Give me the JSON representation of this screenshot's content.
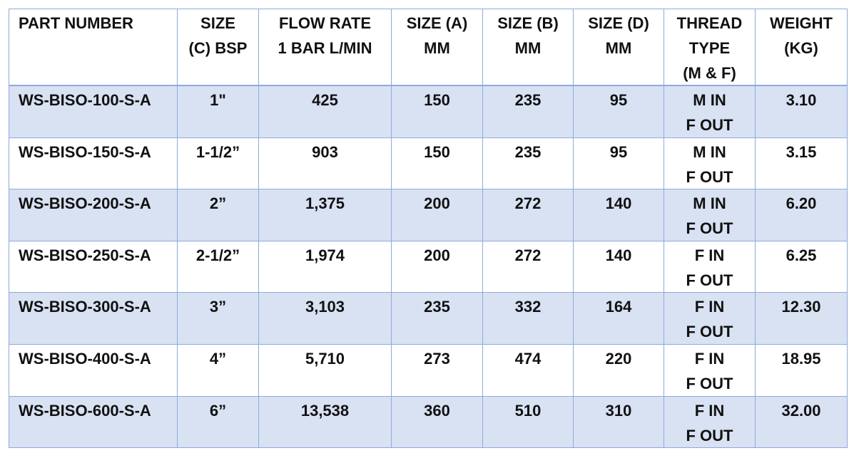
{
  "table": {
    "header": [
      [
        "PART NUMBER"
      ],
      [
        "SIZE",
        "(C) BSP"
      ],
      [
        "FLOW RATE",
        "1 BAR L/MIN"
      ],
      [
        "SIZE (A)",
        "MM"
      ],
      [
        "SIZE (B)",
        "MM"
      ],
      [
        "SIZE (D)",
        "MM"
      ],
      [
        "THREAD",
        "TYPE",
        "(M & F)"
      ],
      [
        "WEIGHT",
        "(KG)"
      ]
    ],
    "rows": [
      [
        [
          "WS-BISO-100-S-A"
        ],
        [
          "1\""
        ],
        [
          "425"
        ],
        [
          "150"
        ],
        [
          "235"
        ],
        [
          "95"
        ],
        [
          "M IN",
          "F OUT"
        ],
        [
          "3.10"
        ]
      ],
      [
        [
          "WS-BISO-150-S-A"
        ],
        [
          "1-1/2”"
        ],
        [
          "903"
        ],
        [
          "150"
        ],
        [
          "235"
        ],
        [
          "95"
        ],
        [
          "M IN",
          "F OUT"
        ],
        [
          "3.15"
        ]
      ],
      [
        [
          "WS-BISO-200-S-A"
        ],
        [
          "2”"
        ],
        [
          "1,375"
        ],
        [
          "200"
        ],
        [
          "272"
        ],
        [
          "140"
        ],
        [
          "M IN",
          "F OUT"
        ],
        [
          "6.20"
        ]
      ],
      [
        [
          "WS-BISO-250-S-A"
        ],
        [
          "2-1/2”"
        ],
        [
          "1,974"
        ],
        [
          "200"
        ],
        [
          "272"
        ],
        [
          "140"
        ],
        [
          "F IN",
          "F OUT"
        ],
        [
          "6.25"
        ]
      ],
      [
        [
          "WS-BISO-300-S-A"
        ],
        [
          "3”"
        ],
        [
          "3,103"
        ],
        [
          "235"
        ],
        [
          "332"
        ],
        [
          "164"
        ],
        [
          "F IN",
          "F OUT"
        ],
        [
          "12.30"
        ]
      ],
      [
        [
          "WS-BISO-400-S-A"
        ],
        [
          "4”"
        ],
        [
          "5,710"
        ],
        [
          "273"
        ],
        [
          "474"
        ],
        [
          "220"
        ],
        [
          "F IN",
          "F OUT"
        ],
        [
          "18.95"
        ]
      ],
      [
        [
          "WS-BISO-600-S-A"
        ],
        [
          "6”"
        ],
        [
          "13,538"
        ],
        [
          "360"
        ],
        [
          "510"
        ],
        [
          "310"
        ],
        [
          "F IN",
          "F OUT"
        ],
        [
          "32.00"
        ]
      ]
    ]
  }
}
